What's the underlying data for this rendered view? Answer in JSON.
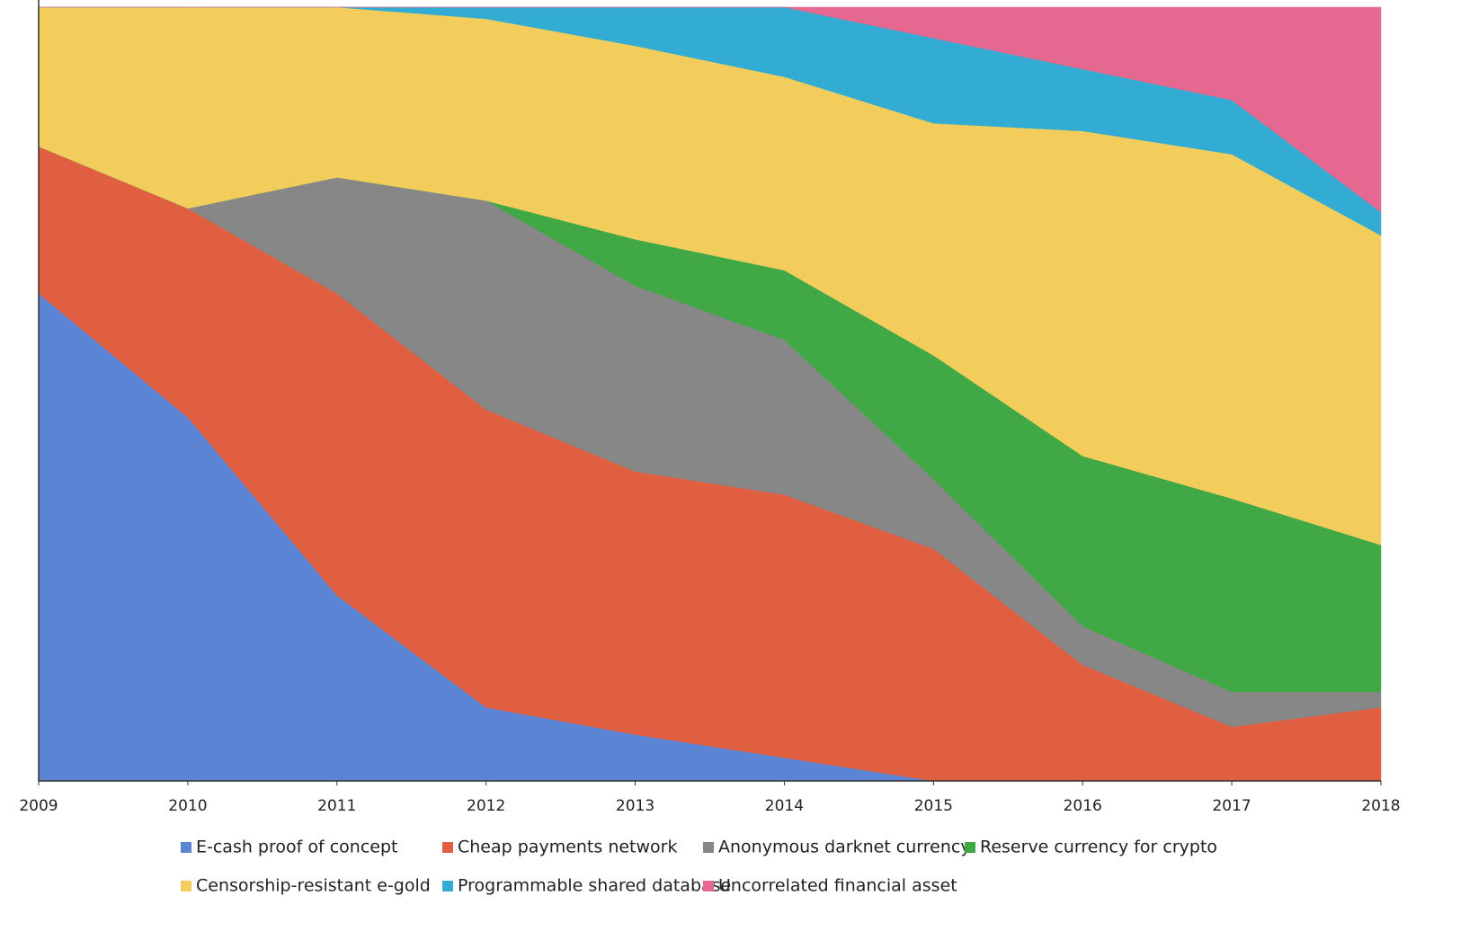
{
  "chart_data": {
    "type": "stacked-area",
    "x": [
      2009,
      2010,
      2011,
      2012,
      2013,
      2014,
      2015,
      2016,
      2017,
      2018
    ],
    "xlim": [
      2009,
      2018
    ],
    "xticks": [
      2009,
      2010,
      2011,
      2012,
      2013,
      2014,
      2015,
      2016,
      2017,
      2018
    ],
    "ylim": [
      0,
      100
    ],
    "series": [
      {
        "name": "E-cash proof of concept",
        "color": "#5b84d5",
        "values": [
          63,
          47,
          24,
          9.5,
          6,
          3,
          0,
          0,
          0,
          0
        ]
      },
      {
        "name": "Cheap payments network",
        "color": "#e15f41",
        "values": [
          19,
          27,
          39,
          38.5,
          34,
          34,
          30,
          15,
          7,
          9.5
        ]
      },
      {
        "name": "Anonymous darknet currency",
        "color": "#878787",
        "values": [
          0,
          0,
          15,
          27,
          24,
          20,
          9,
          5,
          4.5,
          2
        ]
      },
      {
        "name": "Reserve currency for crypto",
        "color": "#41a846",
        "values": [
          0,
          0,
          0,
          0,
          6,
          9,
          16,
          22,
          25,
          19
        ]
      },
      {
        "name": "Censorship-resistant e-gold",
        "color": "#f2cd5c",
        "values": [
          18,
          26,
          22,
          23.5,
          25,
          25,
          30,
          42,
          44.5,
          40
        ]
      },
      {
        "name": "Programmable shared database",
        "color": "#33acd3",
        "values": [
          0,
          0,
          0,
          1.5,
          5,
          9,
          11,
          8,
          7,
          3
        ]
      },
      {
        "name": "Uncorrelated financial asset",
        "color": "#e4688f",
        "values": [
          0,
          0,
          0,
          0,
          0,
          0,
          4,
          8,
          12,
          26.5
        ]
      }
    ]
  }
}
